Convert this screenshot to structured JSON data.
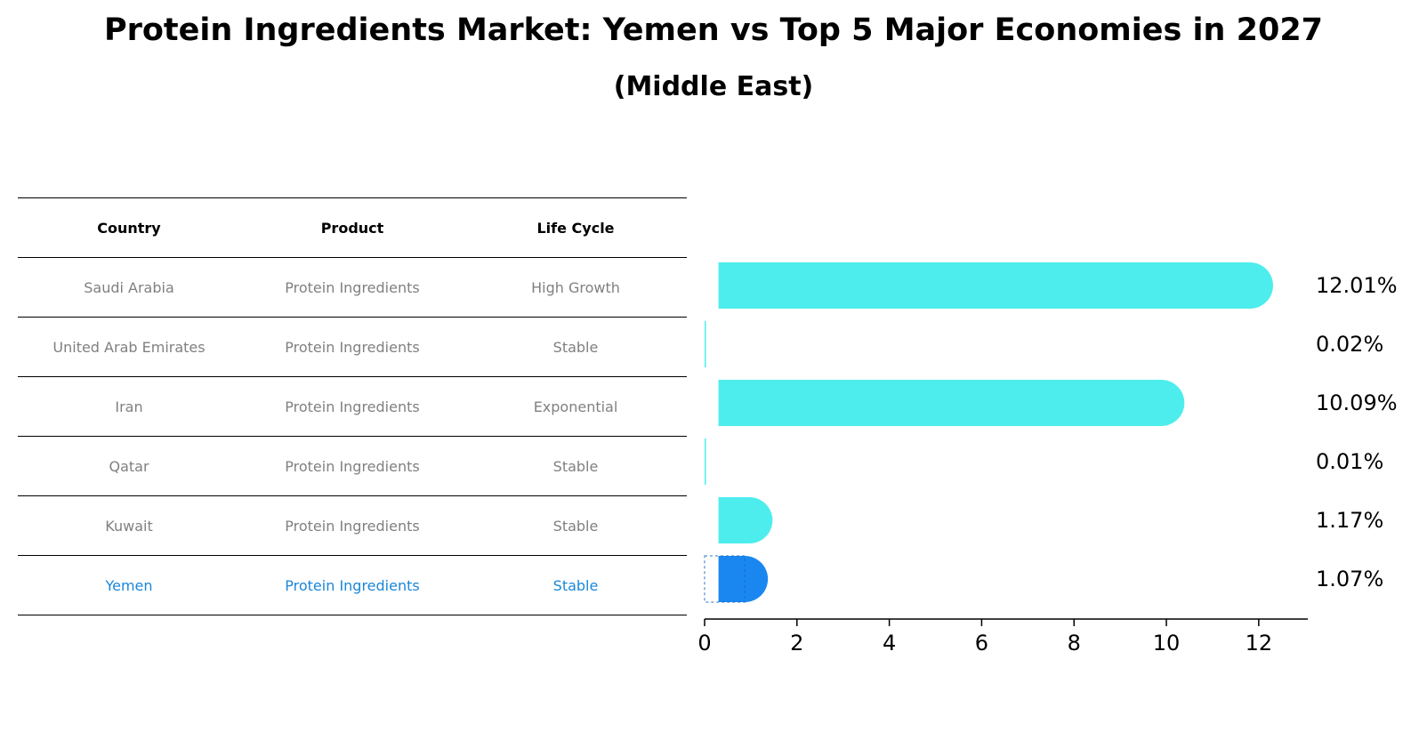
{
  "title": "Protein Ingredients Market: Yemen vs Top 5 Major Economies in 2027",
  "subtitle": "(Middle East)",
  "table": {
    "headers": [
      "Country",
      "Product",
      "Life Cycle"
    ],
    "rows": [
      {
        "country": "Saudi Arabia",
        "product": "Protein Ingredients",
        "life_cycle": "High Growth"
      },
      {
        "country": "United Arab Emirates",
        "product": "Protein Ingredients",
        "life_cycle": "Stable"
      },
      {
        "country": "Iran",
        "product": "Protein Ingredients",
        "life_cycle": "Exponential"
      },
      {
        "country": "Qatar",
        "product": "Protein Ingredients",
        "life_cycle": "Stable"
      },
      {
        "country": "Kuwait",
        "product": "Protein Ingredients",
        "life_cycle": "Stable"
      },
      {
        "country": "Yemen",
        "product": "Protein Ingredients",
        "life_cycle": "Stable"
      }
    ]
  },
  "colors": {
    "bar": "#4ded ec",
    "highlight_bar": "#1a87f0",
    "highlight_text": "#1a87d8",
    "muted_text": "#808080"
  },
  "chart_data": {
    "type": "bar",
    "orientation": "horizontal",
    "categories": [
      "Saudi Arabia",
      "United Arab Emirates",
      "Iran",
      "Qatar",
      "Kuwait",
      "Yemen"
    ],
    "values": [
      12.01,
      0.02,
      10.09,
      0.01,
      1.17,
      1.07
    ],
    "value_labels": [
      "12.01%",
      "0.02%",
      "10.09%",
      "0.01%",
      "1.17%",
      "1.07%"
    ],
    "highlight_index": 5,
    "xticks": [
      0,
      2,
      4,
      6,
      8,
      10,
      12
    ],
    "xlim": [
      0,
      12.6
    ],
    "title": "",
    "xlabel": "",
    "ylabel": ""
  }
}
